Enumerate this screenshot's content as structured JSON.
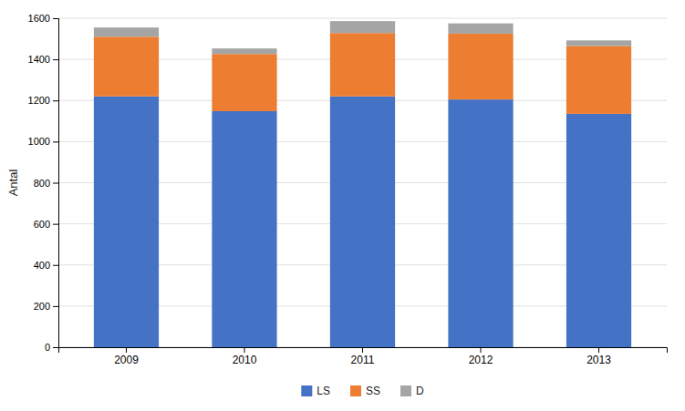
{
  "chart_data": {
    "type": "bar",
    "stacked": true,
    "categories": [
      "2009",
      "2010",
      "2011",
      "2012",
      "2013"
    ],
    "series": [
      {
        "name": "LS",
        "color": "#4472C4",
        "values": [
          1220,
          1148,
          1220,
          1205,
          1135
        ]
      },
      {
        "name": "SS",
        "color": "#ED7D31",
        "values": [
          290,
          278,
          308,
          320,
          330
        ]
      },
      {
        "name": "D",
        "color": "#A5A5A5",
        "values": [
          45,
          27,
          58,
          50,
          27
        ]
      }
    ],
    "y_label": "Antal",
    "ylim": [
      0,
      1600
    ],
    "yticks": [
      0,
      200,
      400,
      600,
      800,
      1000,
      1200,
      1400,
      1600
    ],
    "grid": true,
    "legend": "bottom"
  }
}
